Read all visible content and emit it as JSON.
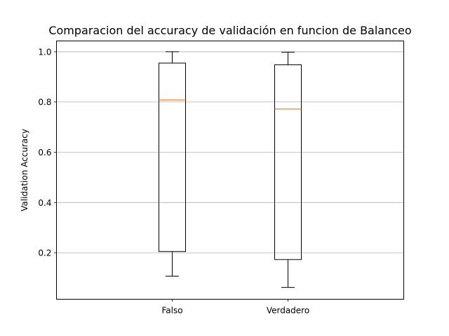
{
  "chart_data": {
    "type": "box",
    "title": "Comparacion del accuracy de validación en funcion de Balanceo",
    "xlabel": "",
    "ylabel": "Validation Accuracy",
    "categories": [
      "Falso",
      "Verdadero"
    ],
    "boxes": [
      {
        "category": "Falso",
        "whisker_low": 0.107,
        "q1": 0.205,
        "median": 0.808,
        "q3": 0.955,
        "whisker_high": 1.0
      },
      {
        "category": "Verdadero",
        "whisker_low": 0.062,
        "q1": 0.173,
        "median": 0.772,
        "q3": 0.948,
        "whisker_high": 0.998
      }
    ],
    "ylim": [
      0.015,
      1.043
    ],
    "yticks": [
      0.2,
      0.4,
      0.6,
      0.8,
      1.0
    ],
    "ytick_labels": [
      "0.2",
      "0.4",
      "0.6",
      "0.8",
      "1.0"
    ],
    "grid": "y",
    "colors": {
      "box": "#000000",
      "median": "#ff7f0e",
      "grid": "#b0b0b0"
    }
  }
}
